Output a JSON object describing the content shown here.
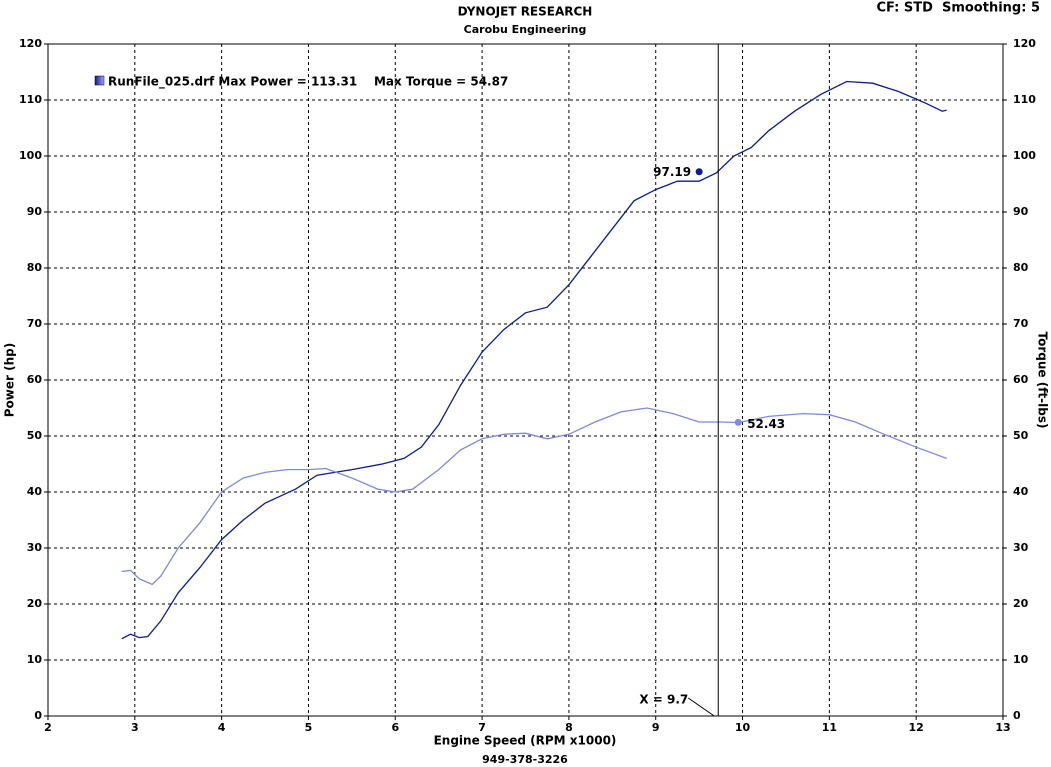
{
  "chart_data": {
    "type": "line",
    "title": "DYNOJET RESEARCH",
    "subtitle": "Carobu Engineering",
    "corner_note": "CF: STD  Smoothing: 5",
    "legend_text": "RunFile_025.drf Max Power = 113.31    Max Torque = 54.87",
    "xlabel": "Engine Speed (RPM x1000)",
    "ylabel": "Power (hp)",
    "y2label": "Torque (ft-lbs)",
    "footer": "949-378-3226",
    "xlim": [
      2,
      13
    ],
    "xticks": [
      2,
      3,
      4,
      5,
      6,
      7,
      8,
      9,
      10,
      11,
      12,
      13
    ],
    "ylim": [
      0,
      120
    ],
    "yticks": [
      0,
      10,
      20,
      30,
      40,
      50,
      60,
      70,
      80,
      90,
      100,
      110,
      120
    ],
    "y2lim": [
      0,
      120
    ],
    "y2ticks": [
      0,
      10,
      20,
      30,
      40,
      50,
      60,
      70,
      80,
      90,
      100,
      110,
      120
    ],
    "grid": true,
    "series": [
      {
        "color": "#0d1b8f",
        "axis": "y",
        "x": [
          2.85,
          2.95,
          3.05,
          3.15,
          3.3,
          3.5,
          3.75,
          4.0,
          4.25,
          4.5,
          4.85,
          5.1,
          5.5,
          5.85,
          6.1,
          6.3,
          6.5,
          6.75,
          7.0,
          7.25,
          7.5,
          7.75,
          8.0,
          8.25,
          8.5,
          8.75,
          9.0,
          9.25,
          9.5,
          9.7,
          9.9,
          10.1,
          10.3,
          10.6,
          10.9,
          11.2,
          11.5,
          11.8,
          12.1,
          12.3,
          12.35
        ],
        "values": [
          13.8,
          14.6,
          14.0,
          14.2,
          17,
          22,
          26.5,
          31.5,
          35,
          38,
          40.5,
          43,
          44,
          45,
          46,
          48,
          52,
          59,
          65,
          69,
          72,
          73,
          77,
          82,
          87,
          92,
          94,
          95.5,
          95.5,
          97,
          100,
          101.5,
          104.5,
          108,
          111,
          113.3,
          113,
          111.5,
          109.5,
          108,
          108.2
        ]
      },
      {
        "color": "#8088e0",
        "axis": "y2",
        "x": [
          2.85,
          2.95,
          3.05,
          3.2,
          3.3,
          3.5,
          3.75,
          4.0,
          4.25,
          4.5,
          4.75,
          5.0,
          5.2,
          5.5,
          5.8,
          6.0,
          6.2,
          6.5,
          6.75,
          7.0,
          7.25,
          7.5,
          7.75,
          8.0,
          8.3,
          8.6,
          8.9,
          9.2,
          9.5,
          9.75,
          9.95,
          10.3,
          10.7,
          11.0,
          11.3,
          11.6,
          12.0,
          12.35
        ],
        "values": [
          25.8,
          26,
          24.5,
          23.5,
          25,
          30,
          34.5,
          40,
          42.5,
          43.5,
          44,
          44,
          44.2,
          42.5,
          40.5,
          40,
          40.5,
          44,
          47.5,
          49.5,
          50.3,
          50.5,
          49.5,
          50.3,
          52.5,
          54.3,
          55,
          54,
          52.5,
          52.5,
          52.4,
          53.5,
          54,
          53.8,
          52.5,
          50.5,
          48,
          46
        ]
      }
    ],
    "markers": [
      {
        "series": 0,
        "x": 9.5,
        "y": 97.19
      },
      {
        "series": 1,
        "x": 9.95,
        "y": 52.43
      }
    ],
    "cursor": {
      "x": 9.72,
      "label": "X = 9.7"
    }
  }
}
